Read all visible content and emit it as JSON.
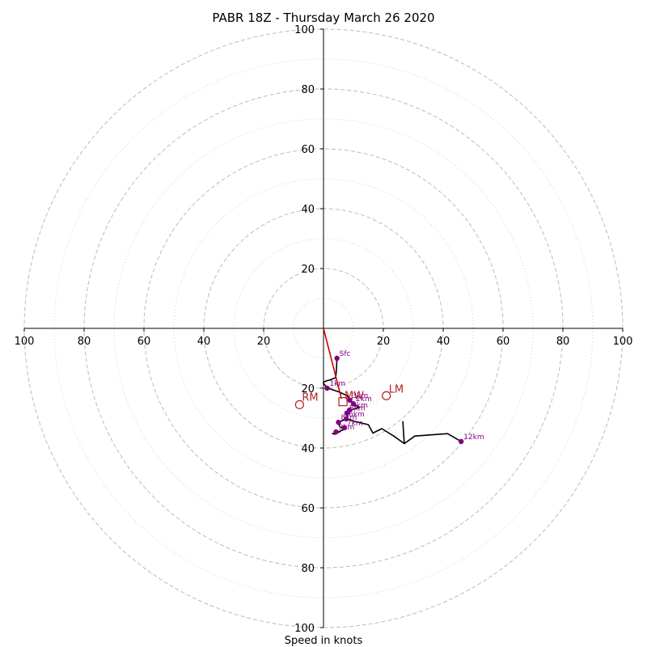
{
  "chart_data": {
    "type": "hodograph",
    "title": "PABR 18Z - Thursday March 26 2020",
    "xlabel": "Speed in knots",
    "axis_range": [
      -100,
      100
    ],
    "major_rings": [
      20,
      40,
      60,
      80,
      100
    ],
    "minor_rings": [
      10,
      30,
      50,
      70,
      90
    ],
    "tick_labels": {
      "x": [
        "100",
        "80",
        "60",
        "40",
        "20",
        "20",
        "40",
        "60",
        "80",
        "100"
      ],
      "y": [
        "100",
        "80",
        "60",
        "40",
        "20",
        "20",
        "40",
        "60",
        "80",
        "100"
      ]
    },
    "wind_profile": [
      {
        "u": 4.5,
        "v": -10
      },
      {
        "u": 4.4,
        "v": -12
      },
      {
        "u": 4.3,
        "v": -14
      },
      {
        "u": 4.2,
        "v": -15.5
      },
      {
        "u": 4.0,
        "v": -16.5
      },
      {
        "u": 2.0,
        "v": -17.3
      },
      {
        "u": 1.0,
        "v": -17.5
      },
      {
        "u": 0.0,
        "v": -18
      },
      {
        "u": 0.0,
        "v": -18.5
      },
      {
        "u": 1.5,
        "v": -20
      },
      {
        "u": 5.0,
        "v": -21.2
      },
      {
        "u": 8.0,
        "v": -22.5
      },
      {
        "u": 8.8,
        "v": -24
      },
      {
        "u": 10.5,
        "v": -25.5
      },
      {
        "u": 12.0,
        "v": -26.5
      },
      {
        "u": 10.0,
        "v": -27
      },
      {
        "u": 9.0,
        "v": -27.5
      },
      {
        "u": 8.3,
        "v": -28.5
      },
      {
        "u": 7.8,
        "v": -29.5
      },
      {
        "u": 7.5,
        "v": -30
      },
      {
        "u": 10.0,
        "v": -31
      },
      {
        "u": 15.0,
        "v": -32.2
      },
      {
        "u": 16.5,
        "v": -35
      },
      {
        "u": 19.5,
        "v": -33.5
      },
      {
        "u": 23.5,
        "v": -36
      },
      {
        "u": 27.0,
        "v": -38.5
      },
      {
        "u": 26.5,
        "v": -31.2
      },
      {
        "u": 27.0,
        "v": -38.5
      },
      {
        "u": 30.5,
        "v": -36
      },
      {
        "u": 41.5,
        "v": -35.2
      },
      {
        "u": 46.0,
        "v": -37.8
      }
    ],
    "inner_profile": [
      {
        "u": 7.0,
        "v": -30.5
      },
      {
        "u": 4.8,
        "v": -31.5
      },
      {
        "u": 5.5,
        "v": -33
      },
      {
        "u": 7.5,
        "v": -33.5
      },
      {
        "u": 4.0,
        "v": -35
      },
      {
        "u": 3.0,
        "v": -35.2
      },
      {
        "u": 5.5,
        "v": -34.5
      },
      {
        "u": 3.5,
        "v": -35.5
      }
    ],
    "height_markers": [
      {
        "label": "Sfc",
        "u": 4.5,
        "v": -10
      },
      {
        "label": "1km",
        "u": 1.2,
        "v": -20
      },
      {
        "label": "3km",
        "u": 8.8,
        "v": -24
      },
      {
        "label": "2km",
        "u": 10.0,
        "v": -25.2
      },
      {
        "label": "4km",
        "u": 8.7,
        "v": -27.3
      },
      {
        "label": "5km",
        "u": 7.8,
        "v": -28.3
      },
      {
        "label": "6km",
        "u": 7.6,
        "v": -30.3
      },
      {
        "label": "8km",
        "u": 5.0,
        "v": -31.4
      },
      {
        "label": "7km",
        "u": 7.0,
        "v": -33.2
      },
      {
        "label": "9km",
        "u": 4.2,
        "v": -34.6
      },
      {
        "label": "12km",
        "u": 46.0,
        "v": -37.8
      }
    ],
    "storm_motion": {
      "line": [
        {
          "u": 0,
          "v": 0
        },
        {
          "u": 6.0,
          "v": -23.5
        }
      ],
      "RM": {
        "label": "RM",
        "u": -8.0,
        "v": -25.5
      },
      "LM": {
        "label": "LM",
        "u": 21.0,
        "v": -22.5
      },
      "MW": {
        "label": "MW",
        "u": 6.5,
        "v": -24.5
      }
    },
    "colors": {
      "profile": "#000000",
      "markers": "#800080",
      "storm_motion": "#cc0000",
      "rings": "#bbbbbb"
    },
    "grid": true
  }
}
